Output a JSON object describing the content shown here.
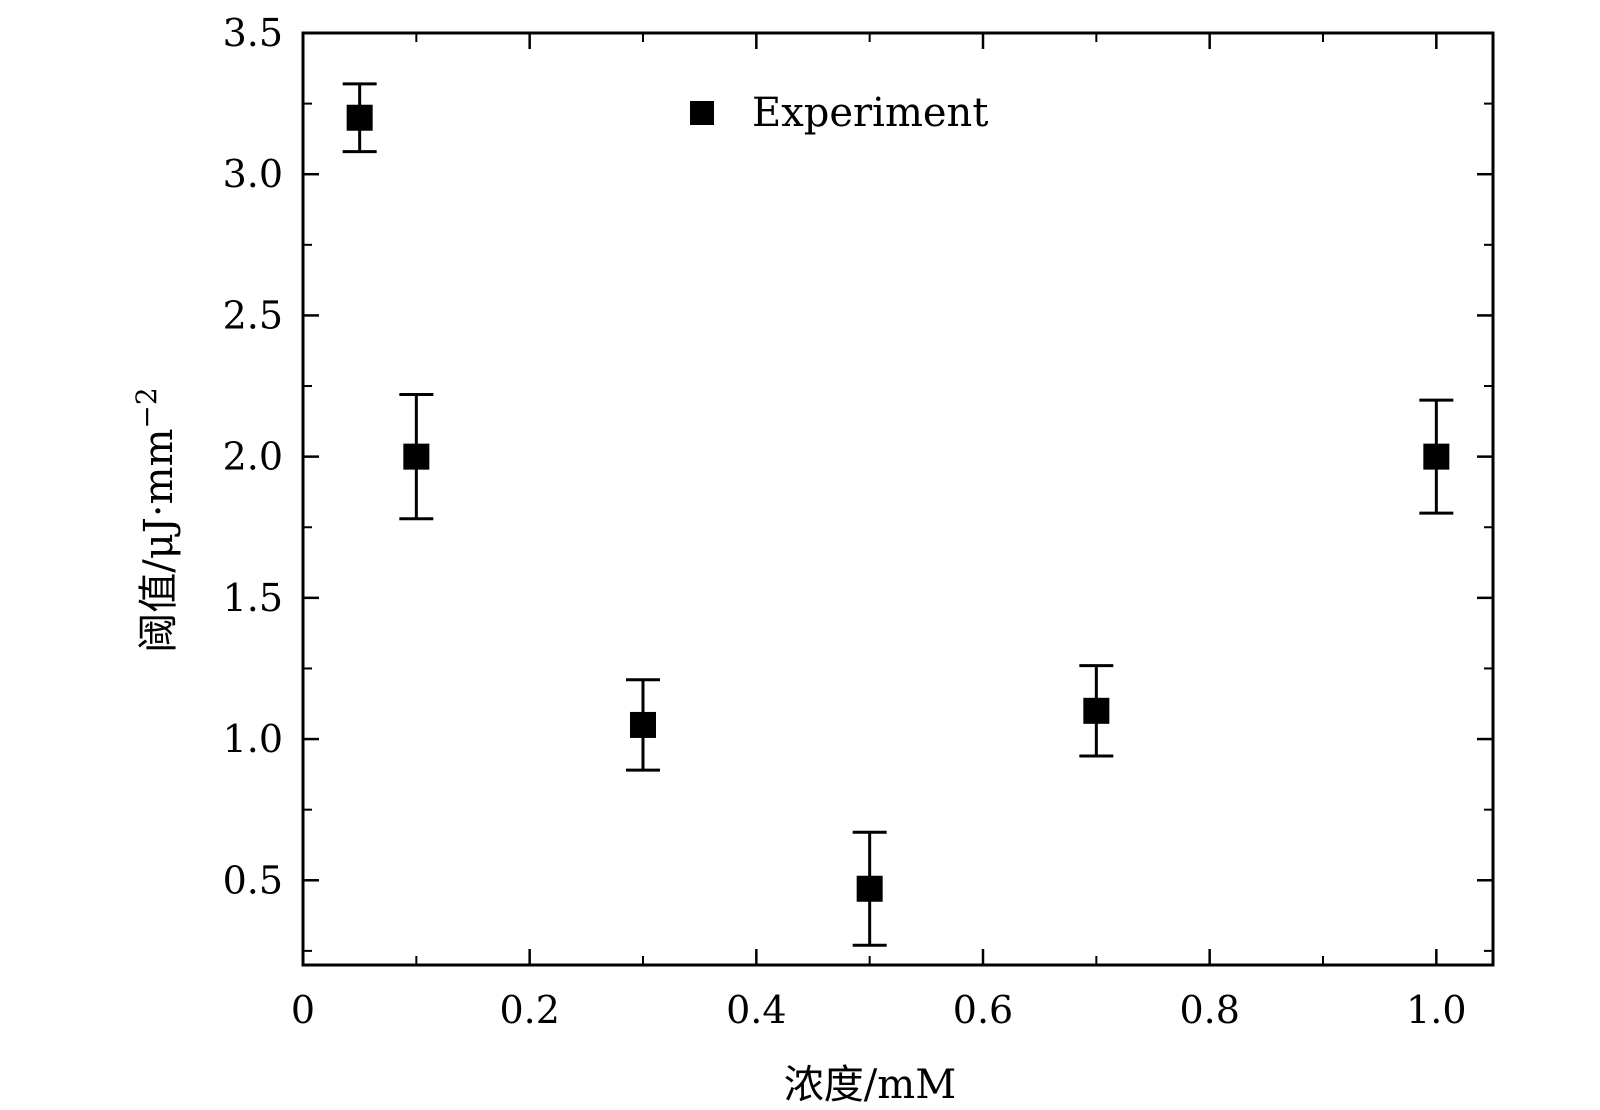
{
  "chart_data": {
    "type": "scatter",
    "xlabel": "浓度/mM",
    "ylabel": "阈值/μJ·mm",
    "ylabel_superscript": "−2",
    "xlim": [
      0,
      1.05
    ],
    "ylim": [
      0.2,
      3.5
    ],
    "xticks": [
      0,
      0.2,
      0.4,
      0.6,
      0.8,
      1.0
    ],
    "xtick_labels": [
      "0",
      "0.2",
      "0.4",
      "0.6",
      "0.8",
      "1.0"
    ],
    "yticks": [
      0.5,
      1.0,
      1.5,
      2.0,
      2.5,
      3.0,
      3.5
    ],
    "ytick_labels": [
      "0.5",
      "1.0",
      "1.5",
      "2.0",
      "2.5",
      "3.0",
      "3.5"
    ],
    "legend_position": "top-center",
    "series": [
      {
        "name": "Experiment",
        "marker": "square",
        "color": "#000000",
        "points": [
          {
            "x": 0.05,
            "y": 3.2,
            "err_low": 0.12,
            "err_high": 0.12
          },
          {
            "x": 0.1,
            "y": 2.0,
            "err_low": 0.22,
            "err_high": 0.22
          },
          {
            "x": 0.3,
            "y": 1.05,
            "err_low": 0.16,
            "err_high": 0.16
          },
          {
            "x": 0.5,
            "y": 0.47,
            "err_low": 0.2,
            "err_high": 0.2
          },
          {
            "x": 0.7,
            "y": 1.1,
            "err_low": 0.16,
            "err_high": 0.16
          },
          {
            "x": 1.0,
            "y": 2.0,
            "err_low": 0.2,
            "err_high": 0.2
          }
        ]
      }
    ]
  }
}
